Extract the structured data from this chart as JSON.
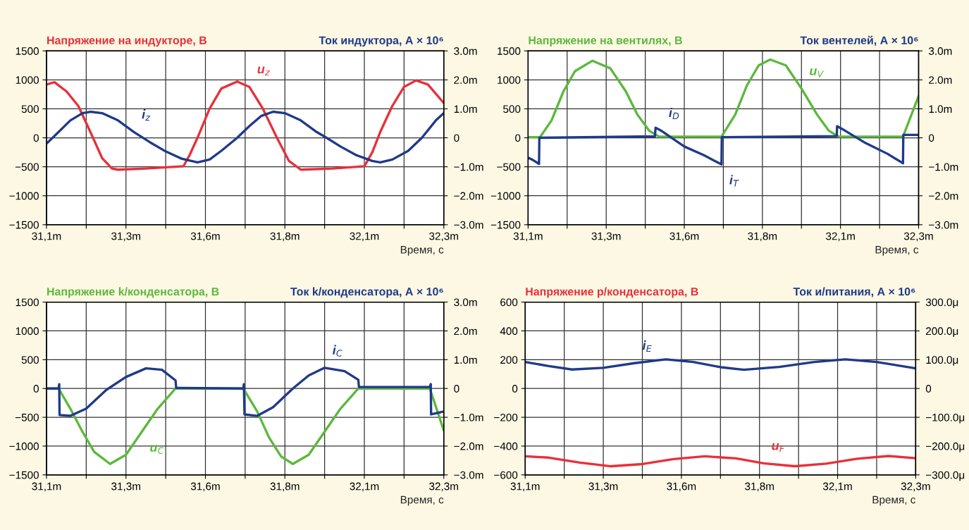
{
  "chart_data": [
    {
      "type": "line",
      "ylabel": "Напряжение на индукторе, В",
      "y2label": "Ток индуктора, А × 10⁶",
      "xlabel": "Время, с",
      "xlim": [
        31.1,
        32.35
      ],
      "xticks": [
        {
          "value": 31.1,
          "label": "31,1m"
        },
        {
          "value": 31.225,
          "label": null
        },
        {
          "value": 31.35,
          "label": "31,3m"
        },
        {
          "value": 31.475,
          "label": null
        },
        {
          "value": 31.6,
          "label": "31,6m"
        },
        {
          "value": 31.725,
          "label": null
        },
        {
          "value": 31.85,
          "label": "31,8m"
        },
        {
          "value": 31.975,
          "label": null
        },
        {
          "value": 32.1,
          "label": "32,1m"
        },
        {
          "value": 32.225,
          "label": null
        },
        {
          "value": 32.35,
          "label": "32,3m"
        }
      ],
      "ylim": [
        -1500,
        1500
      ],
      "yticks": [
        {
          "value": -1500,
          "label": "−1500"
        },
        {
          "value": -1000,
          "label": "−1000"
        },
        {
          "value": -500,
          "label": "−500"
        },
        0,
        500,
        1000,
        1500
      ],
      "y2lim": [
        -3,
        3
      ],
      "y2ticks": [
        {
          "value": -3,
          "label": "−3.0m"
        },
        {
          "value": -2,
          "label": "−2.0m"
        },
        {
          "value": -1,
          "label": "−1.0m"
        },
        0,
        {
          "value": 1,
          "label": "1.0m"
        },
        {
          "value": 2,
          "label": "2.0m"
        },
        {
          "value": 3,
          "label": "3.0m"
        }
      ],
      "grid": true,
      "series": [
        {
          "color": "#e8303a",
          "x": [
            31.1,
            31.125,
            31.163,
            31.2,
            31.238,
            31.275,
            31.306,
            31.325,
            31.413,
            31.531,
            31.55,
            31.575,
            31.613,
            31.65,
            31.7,
            31.738,
            31.781,
            31.825,
            31.863,
            31.9,
            32.0,
            32.1,
            32.125,
            32.15,
            32.188,
            32.225,
            32.263,
            32.3,
            32.35
          ],
          "values": [
            920,
            960,
            800,
            550,
            100,
            -350,
            -530,
            -550,
            -530,
            -490,
            -300,
            0,
            500,
            850,
            970,
            880,
            500,
            0,
            -400,
            -550,
            -530,
            -490,
            -250,
            100,
            550,
            880,
            990,
            920,
            600
          ]
        },
        {
          "color": "#1f3a8a",
          "axis": "y2",
          "x": [
            31.1,
            31.138,
            31.175,
            31.213,
            31.238,
            31.275,
            31.325,
            31.375,
            31.425,
            31.475,
            31.525,
            31.575,
            31.613,
            31.65,
            31.7,
            31.738,
            31.775,
            31.813,
            31.85,
            31.9,
            31.95,
            31.981,
            32.025,
            32.075,
            32.125,
            32.15,
            32.188,
            32.238,
            32.281,
            32.325,
            32.35
          ],
          "values": [
            -0.2,
            0.2,
            0.6,
            0.85,
            0.9,
            0.85,
            0.6,
            0.2,
            -0.15,
            -0.47,
            -0.72,
            -0.85,
            -0.75,
            -0.45,
            0,
            0.4,
            0.75,
            0.9,
            0.85,
            0.6,
            0.2,
            0,
            -0.3,
            -0.6,
            -0.8,
            -0.85,
            -0.75,
            -0.45,
            0,
            0.6,
            0.85
          ]
        }
      ],
      "annotations": [
        {
          "text": "i$_{z}$",
          "x": 31.375,
          "y": 100
        },
        {
          "text": "u$_{z}$",
          "x": 31.738,
          "y": 880
        }
      ]
    },
    {
      "type": "line",
      "ylabel": "Напряжение на вентилях, В",
      "y2label": "Ток вентелей, А × 10⁶",
      "xlabel": "Время, с",
      "xlim": [
        31.1,
        32.35
      ],
      "xticks": [
        {
          "value": 31.1,
          "label": "31,1m"
        },
        {
          "value": 31.225,
          "label": null
        },
        {
          "value": 31.35,
          "label": "31,3m"
        },
        {
          "value": 31.475,
          "label": null
        },
        {
          "value": 31.6,
          "label": "31,6m"
        },
        {
          "value": 31.725,
          "label": null
        },
        {
          "value": 31.85,
          "label": "31,8m"
        },
        {
          "value": 31.975,
          "label": null
        },
        {
          "value": 32.1,
          "label": "32,1m"
        },
        {
          "value": 32.225,
          "label": null
        },
        {
          "value": 32.35,
          "label": "32,3m"
        }
      ],
      "ylim": [
        -1500,
        1500
      ],
      "yticks": [
        {
          "value": -1500,
          "label": "−1500"
        },
        {
          "value": -1000,
          "label": "−1000"
        },
        {
          "value": -500,
          "label": "−500"
        },
        0,
        500,
        1000,
        1500
      ],
      "y2lim": [
        -3,
        3
      ],
      "y2ticks": [
        {
          "value": -3,
          "label": "−3.0m"
        },
        {
          "value": -2,
          "label": "−2.0m"
        },
        {
          "value": -1,
          "label": "−1.0m"
        },
        0,
        {
          "value": 1,
          "label": "1.0m"
        },
        {
          "value": 2,
          "label": "2.0m"
        },
        {
          "value": 3,
          "label": "3.0m"
        }
      ],
      "grid": true,
      "series": [
        {
          "color": "#5cb83c",
          "x": [
            31.1,
            31.138,
            31.175,
            31.213,
            31.25,
            31.306,
            31.363,
            31.413,
            31.45,
            31.488,
            31.519,
            31.719,
            31.763,
            31.8,
            31.838,
            31.875,
            31.925,
            31.975,
            32.025,
            32.063,
            32.094,
            32.3,
            32.35
          ],
          "values": [
            10,
            10,
            300,
            800,
            1150,
            1330,
            1200,
            800,
            400,
            120,
            20,
            20,
            400,
            900,
            1250,
            1350,
            1250,
            850,
            400,
            120,
            20,
            20,
            720
          ]
        },
        {
          "color": "#1f3a8a",
          "axis": "y2",
          "x": [
            31.1,
            31.113,
            31.135,
            31.136,
            31.506,
            31.508,
            31.525,
            31.6,
            31.663,
            31.719,
            31.72,
            32.088,
            32.089,
            32.106,
            32.175,
            32.25,
            32.3,
            32.301,
            32.35
          ],
          "values": [
            -0.69,
            -0.75,
            -0.9,
            0,
            0.05,
            0.35,
            0.25,
            -0.3,
            -0.6,
            -0.92,
            0.02,
            0.06,
            0.4,
            0.3,
            -0.15,
            -0.55,
            -0.88,
            0.1,
            0.1
          ]
        }
      ],
      "annotations": [
        {
          "text": "i$_{D}$",
          "x": 31.525,
          "y": 125
        },
        {
          "text": "i$_{T}$",
          "x": 31.719,
          "y": -460
        },
        {
          "text": "u$_{V}$",
          "x": 31.975,
          "y": 850
        }
      ]
    },
    {
      "type": "line",
      "ylabel": "Напряжение k/конденсатора, В",
      "y2label": "Ток k/конденсатора, А × 10⁶",
      "xlabel": "Время, с",
      "xlim": [
        31.1,
        32.35
      ],
      "xticks": [
        {
          "value": 31.1,
          "label": "31,1m"
        },
        {
          "value": 31.225,
          "label": null
        },
        {
          "value": 31.35,
          "label": "31,3m"
        },
        {
          "value": 31.475,
          "label": null
        },
        {
          "value": 31.6,
          "label": "31,6m"
        },
        {
          "value": 31.725,
          "label": null
        },
        {
          "value": 31.85,
          "label": "31,8m"
        },
        {
          "value": 31.975,
          "label": null
        },
        {
          "value": 32.1,
          "label": "32,1m"
        },
        {
          "value": 32.225,
          "label": null
        },
        {
          "value": 32.35,
          "label": "32,3m"
        }
      ],
      "ylim": [
        -1500,
        1500
      ],
      "yticks": [
        {
          "value": -1500,
          "label": "−1500"
        },
        {
          "value": -1000,
          "label": "−1000"
        },
        {
          "value": -500,
          "label": "−500"
        },
        0,
        500,
        1000,
        1500
      ],
      "y2lim": [
        -3,
        3
      ],
      "y2ticks": [
        {
          "value": -3,
          "label": "−3.0m"
        },
        {
          "value": -2,
          "label": "−2.0m"
        },
        {
          "value": -1,
          "label": "−1.0m"
        },
        0,
        {
          "value": 1,
          "label": "1.0m"
        },
        {
          "value": 2,
          "label": "2.0m"
        },
        {
          "value": 3,
          "label": "3.0m"
        }
      ],
      "grid": true,
      "series": [
        {
          "color": "#5cb83c",
          "x": [
            31.1,
            31.138,
            31.175,
            31.213,
            31.25,
            31.3,
            31.35,
            31.4,
            31.45,
            31.506,
            31.719,
            31.763,
            31.8,
            31.838,
            31.875,
            31.925,
            31.975,
            32.025,
            32.081,
            32.306,
            32.35
          ],
          "values": [
            0,
            0,
            -350,
            -750,
            -1100,
            -1310,
            -1150,
            -750,
            -350,
            0,
            0,
            -400,
            -850,
            -1180,
            -1310,
            -1150,
            -750,
            -350,
            0,
            0,
            -730
          ]
        },
        {
          "color": "#1f3a8a",
          "axis": "y2",
          "x": [
            31.1,
            31.138,
            31.14,
            31.141,
            31.175,
            31.225,
            31.288,
            31.35,
            31.413,
            31.463,
            31.506,
            31.508,
            31.719,
            31.721,
            31.723,
            31.763,
            31.813,
            31.875,
            31.925,
            31.975,
            32.038,
            32.081,
            32.083,
            32.306,
            32.309,
            32.31,
            32.35
          ],
          "values": [
            0,
            0,
            0.15,
            -0.92,
            -0.95,
            -0.7,
            -0.05,
            0.4,
            0.7,
            0.65,
            0.28,
            0.02,
            0.0,
            0.15,
            -0.9,
            -0.95,
            -0.65,
            0,
            0.45,
            0.72,
            0.6,
            0.3,
            0.05,
            0.05,
            0.15,
            -0.9,
            -0.8
          ]
        }
      ],
      "annotations": [
        {
          "text": "u$_{C}$",
          "x": 31.4,
          "y": -750
        },
        {
          "text": "i$_{C}$",
          "x": 31.975,
          "y": 360
        }
      ]
    },
    {
      "type": "line",
      "ylabel": "Напряжение р/конденсатора, В",
      "y2label": "Ток и/питания, А × 10⁶",
      "xlabel": "Время, с",
      "xlim": [
        31.1,
        32.35
      ],
      "xticks": [
        {
          "value": 31.1,
          "label": "31,1m"
        },
        {
          "value": 31.225,
          "label": null
        },
        {
          "value": 31.35,
          "label": "31,3m"
        },
        {
          "value": 31.475,
          "label": null
        },
        {
          "value": 31.6,
          "label": "31,6m"
        },
        {
          "value": 31.725,
          "label": null
        },
        {
          "value": 31.85,
          "label": "31,8m"
        },
        {
          "value": 31.975,
          "label": null
        },
        {
          "value": 32.1,
          "label": "32,1m"
        },
        {
          "value": 32.225,
          "label": null
        },
        {
          "value": 32.35,
          "label": "32,3m"
        }
      ],
      "ylim": [
        -600,
        600
      ],
      "yticks": [
        {
          "value": -600,
          "label": "−600"
        },
        {
          "value": -400,
          "label": "−400"
        },
        {
          "value": -200,
          "label": "−200"
        },
        0,
        200,
        400,
        600
      ],
      "y2lim": [
        -300,
        300
      ],
      "y2ticks": [
        {
          "value": -300,
          "label": "−300.0μ"
        },
        {
          "value": -200,
          "label": "−200.0μ"
        },
        {
          "value": -100,
          "label": "−100.0μ"
        },
        0,
        {
          "value": 100,
          "label": "100.0μ"
        },
        {
          "value": 200,
          "label": "200.0μ"
        },
        {
          "value": 300,
          "label": "300.0μ"
        }
      ],
      "grid": true,
      "series": [
        {
          "color": "#e8303a",
          "x": [
            31.1,
            31.175,
            31.275,
            31.375,
            31.475,
            31.575,
            31.675,
            31.775,
            31.863,
            31.963,
            32.063,
            32.163,
            32.263,
            32.35
          ],
          "values": [
            -471,
            -480,
            -515,
            -540,
            -525,
            -490,
            -471,
            -485,
            -520,
            -540,
            -522,
            -488,
            -469,
            -484
          ]
        },
        {
          "color": "#1f3a8a",
          "axis": "y2",
          "x": [
            31.1,
            31.175,
            31.25,
            31.35,
            31.45,
            31.55,
            31.638,
            31.725,
            31.8,
            31.913,
            32.025,
            32.125,
            32.225,
            32.35
          ],
          "values": [
            92,
            78,
            66,
            72,
            88,
            101,
            92,
            74,
            65,
            75,
            92,
            101,
            92,
            70
          ]
        }
      ],
      "annotations": [
        {
          "text": "i$_{E}$",
          "x": 31.45,
          "y": 176
        },
        {
          "text": "u$_{F}$",
          "x": 31.863,
          "y": -520
        }
      ]
    }
  ]
}
